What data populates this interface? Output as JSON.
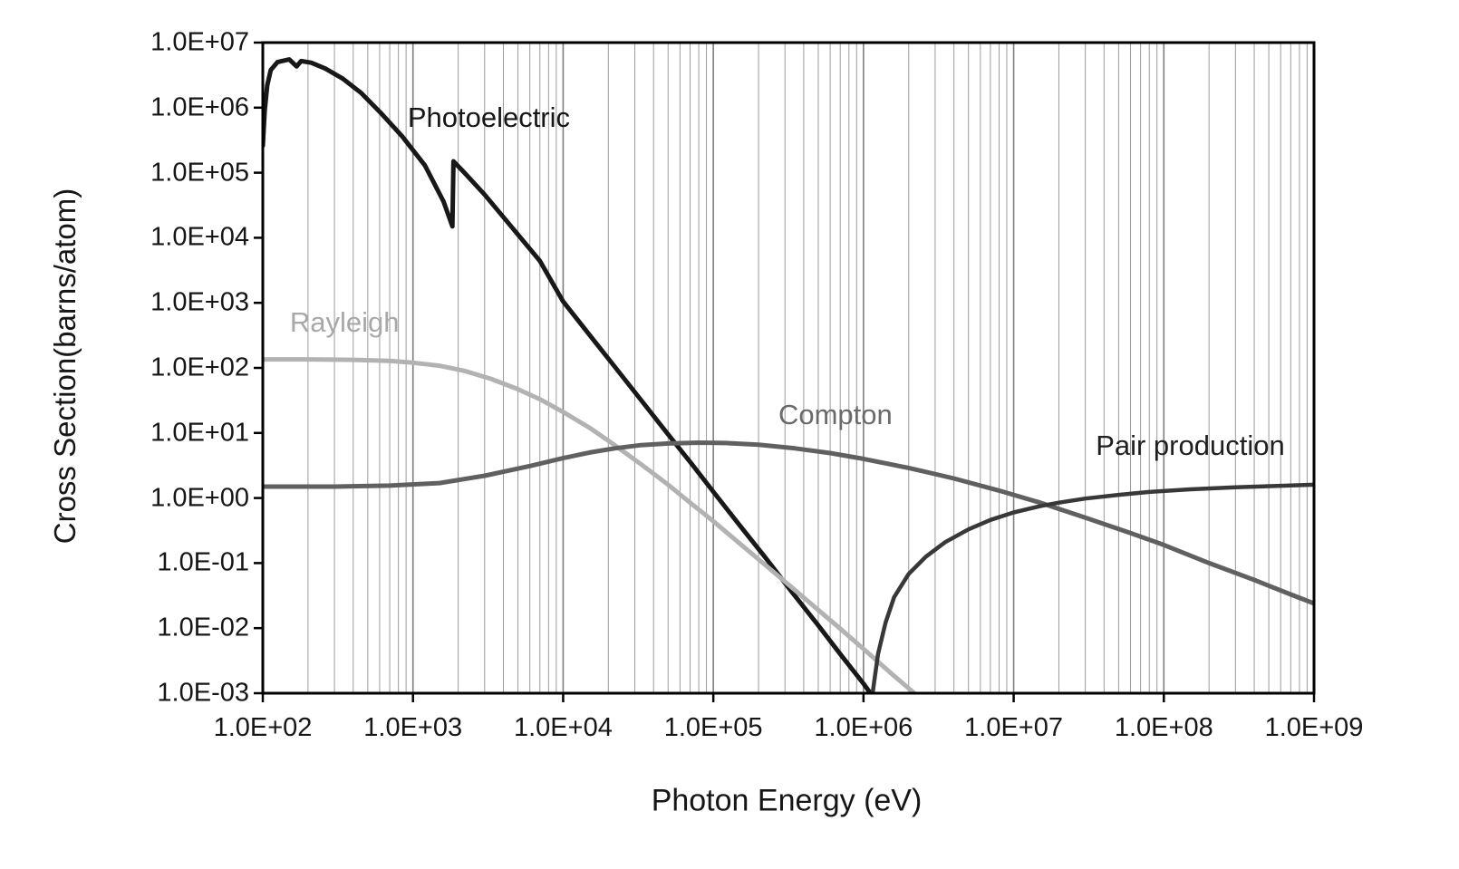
{
  "chart_data": {
    "type": "line",
    "title": "",
    "x_axis": {
      "label": "Photon Energy (eV)",
      "scale": "log",
      "min": 100,
      "max": 1000000000,
      "tick_values": [
        100,
        1000,
        10000,
        100000,
        1000000,
        10000000,
        100000000,
        1000000000
      ],
      "tick_labels": [
        "1.0E+02",
        "1.0E+03",
        "1.0E+04",
        "1.0E+05",
        "1.0E+06",
        "1.0E+07",
        "1.0E+08",
        "1.0E+09"
      ]
    },
    "y_axis": {
      "label": "Cross Section(barns/atom)",
      "scale": "log",
      "min": 0.001,
      "max": 10000000,
      "tick_values": [
        10000000,
        1000000,
        100000,
        10000,
        1000,
        100,
        10,
        1,
        0.1,
        0.01,
        0.001
      ],
      "tick_labels": [
        "1.0E+07",
        "1.0E+06",
        "1.0E+05",
        "1.0E+04",
        "1.0E+03",
        "1.0E+02",
        "1.0E+01",
        "1.0E+00",
        "1.0E-01",
        "1.0E-02",
        "1.0E-03"
      ]
    },
    "grid": {
      "vertical": true,
      "horizontal": false,
      "minor_color": "#9b9b9b",
      "major_color": "#7f7f7f"
    },
    "frame_color": "#000000",
    "series": [
      {
        "name": "Photoelectric",
        "color": "#181818",
        "width": 5,
        "points": [
          [
            100,
            260000.0
          ],
          [
            103,
            900000.0
          ],
          [
            107,
            2200000.0
          ],
          [
            113,
            3800000.0
          ],
          [
            125,
            5000000.0
          ],
          [
            150,
            5500000.0
          ],
          [
            168,
            4300000.0
          ],
          [
            180,
            5200000.0
          ],
          [
            210,
            4900000.0
          ],
          [
            260,
            4000000.0
          ],
          [
            340,
            2800000.0
          ],
          [
            450,
            1700000.0
          ],
          [
            620,
            800000.0
          ],
          [
            850,
            360000.0
          ],
          [
            1200,
            130000.0
          ],
          [
            1600,
            36000.0
          ],
          [
            1830,
            15000.0
          ],
          [
            1860,
            150000.0
          ],
          [
            2200,
            100000.0
          ],
          [
            3000,
            46000.0
          ],
          [
            4500,
            15000.0
          ],
          [
            7000,
            4400.0
          ],
          [
            10000,
            1050.0
          ],
          [
            15000,
            320.0
          ],
          [
            22000,
            105.0
          ],
          [
            33000,
            32.0
          ],
          [
            50000,
            9.5
          ],
          [
            70000,
            3.6
          ],
          [
            100000,
            1.25
          ],
          [
            150000,
            0.38
          ],
          [
            220000,
            0.125
          ],
          [
            330000,
            0.037
          ],
          [
            500000,
            0.011
          ],
          [
            700000,
            0.004
          ],
          [
            1000000,
            0.0014
          ],
          [
            1150000,
            0.0009
          ]
        ]
      },
      {
        "name": "Rayleigh",
        "color": "#b2b2b2",
        "width": 5,
        "points": [
          [
            100,
            135.0
          ],
          [
            200,
            135.0
          ],
          [
            400,
            133.0
          ],
          [
            700,
            128.0
          ],
          [
            1000,
            120.0
          ],
          [
            1500,
            108.0
          ],
          [
            2200,
            90.0
          ],
          [
            3300,
            68.0
          ],
          [
            5000,
            47.0
          ],
          [
            7000,
            33.0
          ],
          [
            10000,
            21.0
          ],
          [
            15000,
            12.0
          ],
          [
            22000,
            6.5
          ],
          [
            33000,
            3.3
          ],
          [
            50000,
            1.6
          ],
          [
            70000,
            0.85
          ],
          [
            100000,
            0.44
          ],
          [
            150000,
            0.2
          ],
          [
            220000,
            0.095
          ],
          [
            330000,
            0.043
          ],
          [
            500000,
            0.019
          ],
          [
            700000,
            0.0098
          ],
          [
            1000000,
            0.0048
          ],
          [
            1500000,
            0.0021
          ],
          [
            2300000,
            0.0009
          ]
        ]
      },
      {
        "name": "Compton",
        "color": "#606060",
        "width": 5,
        "points": [
          [
            100,
            1.5
          ],
          [
            300,
            1.5
          ],
          [
            700,
            1.55
          ],
          [
            1500,
            1.7
          ],
          [
            3000,
            2.2
          ],
          [
            6000,
            3.1
          ],
          [
            10000,
            4.1
          ],
          [
            15000,
            5.0
          ],
          [
            22000,
            5.8
          ],
          [
            33000,
            6.5
          ],
          [
            50000,
            6.9
          ],
          [
            80000,
            7.1
          ],
          [
            120000,
            7.0
          ],
          [
            200000,
            6.6
          ],
          [
            350000,
            5.8
          ],
          [
            600000,
            4.9
          ],
          [
            1000000,
            4.0
          ],
          [
            2000000,
            2.9
          ],
          [
            4000000,
            2.0
          ],
          [
            8000000,
            1.3
          ],
          [
            15000000,
            0.85
          ],
          [
            30000000,
            0.5
          ],
          [
            60000000,
            0.29
          ],
          [
            100000000,
            0.19
          ],
          [
            200000000,
            0.1
          ],
          [
            400000000,
            0.055
          ],
          [
            700000000,
            0.033
          ],
          [
            1000000000,
            0.024
          ]
        ]
      },
      {
        "name": "Pair production",
        "color": "#383838",
        "width": 4.5,
        "points": [
          [
            1150000,
            0.001
          ],
          [
            1250000,
            0.004
          ],
          [
            1400000,
            0.012
          ],
          [
            1600000,
            0.03
          ],
          [
            2000000,
            0.068
          ],
          [
            2600000,
            0.125
          ],
          [
            3500000,
            0.21
          ],
          [
            5000000,
            0.33
          ],
          [
            7000000,
            0.46
          ],
          [
            10000000,
            0.6
          ],
          [
            15000000,
            0.75
          ],
          [
            20000000,
            0.85
          ],
          [
            30000000,
            0.98
          ],
          [
            50000000,
            1.12
          ],
          [
            80000000,
            1.24
          ],
          [
            150000000,
            1.36
          ],
          [
            300000000,
            1.46
          ],
          [
            600000000,
            1.54
          ],
          [
            1000000000,
            1.6
          ]
        ]
      }
    ],
    "annotations": [
      {
        "text": "Photoelectric",
        "color": "#161616",
        "x": 3200,
        "y": 700000.0
      },
      {
        "text": "Rayleigh",
        "color": "#a8a8a8",
        "x": 350,
        "y": 500.0
      },
      {
        "text": "Compton",
        "color": "#6a6a6a",
        "x": 650000,
        "y": 19.0
      },
      {
        "text": "Pair production",
        "color": "#1f1f1f",
        "x": 150000000,
        "y": 6.3
      }
    ]
  }
}
